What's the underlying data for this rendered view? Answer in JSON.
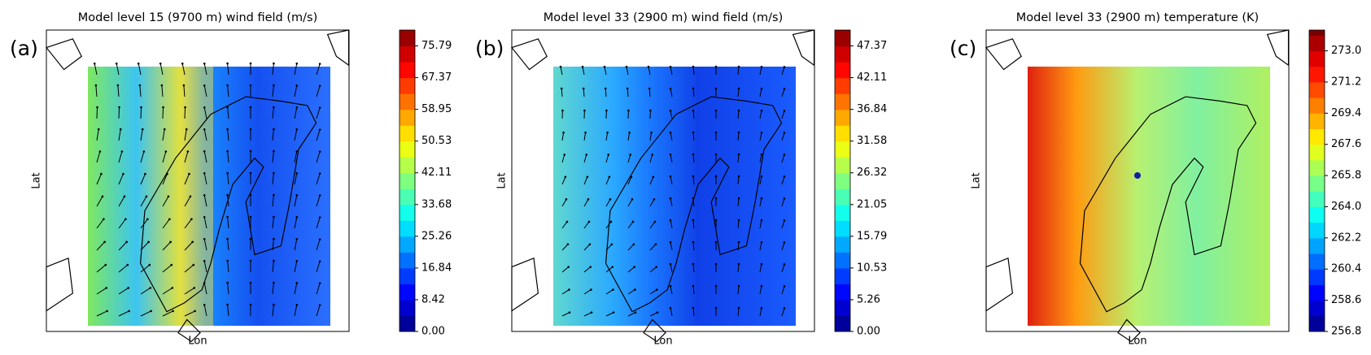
{
  "chart_data": [
    {
      "type": "contour",
      "title": "Model level 15 (9700 m) wind field (m/s)",
      "panel_label": "(a)",
      "xlabel": "Lon",
      "ylabel": "Lat",
      "colormap": "jet",
      "vectors": true,
      "colorbar_lim": [
        0,
        80
      ],
      "colorbar_ticks": [
        {
          "value": 0,
          "label": "0.00"
        },
        8.42,
        16.84,
        25.26,
        33.68,
        42.11,
        50.53,
        58.95,
        67.37,
        75.79
      ]
    },
    {
      "type": "contour",
      "title": "Model level 33 (2900 m) wind field (m/s)",
      "panel_label": "(b)",
      "xlabel": "Lon",
      "ylabel": "Lat",
      "colormap": "jet",
      "vectors": true,
      "colorbar_lim": [
        0,
        50
      ],
      "colorbar_ticks": [
        {
          "value": 0,
          "label": "0.00"
        },
        5.26,
        10.53,
        15.79,
        21.05,
        26.32,
        31.58,
        36.84,
        42.11,
        47.37
      ]
    },
    {
      "type": "contour",
      "title": "Model level 33 (2900 m) temperature (K)",
      "panel_label": "(c)",
      "xlabel": "Lon",
      "ylabel": "Lat",
      "colormap": "jet",
      "vectors": false,
      "colorbar_lim": [
        256.8,
        274.2
      ],
      "colorbar_ticks": [
        256.8,
        258.6,
        260.4,
        262.2,
        {
          "value": 264,
          "label": "264.0"
        },
        265.8,
        267.6,
        269.4,
        271.2,
        {
          "value": 273,
          "label": "273.0"
        }
      ]
    }
  ]
}
